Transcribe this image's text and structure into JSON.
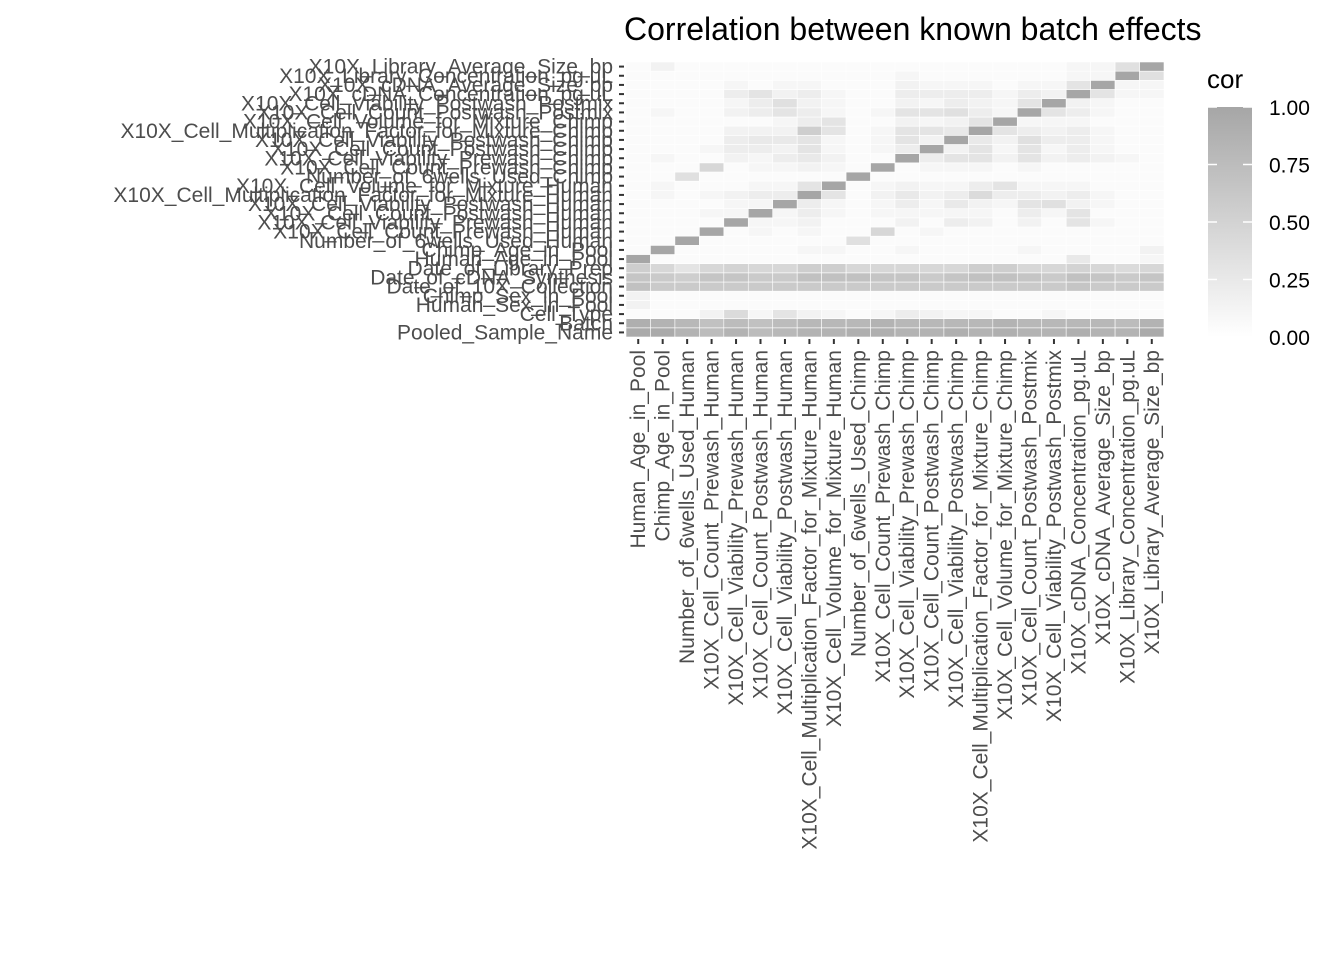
{
  "chart_data": {
    "type": "heatmap",
    "title": "Correlation between known batch effects",
    "y_categories": [
      "Pooled_Sample_Name",
      "Batch",
      "Cell_Type",
      "Human_Sex_in_Pool",
      "Chimp_Sex_in_Pool",
      "Date_of_10X_Collection",
      "Date_of_cDNA_Synthesis",
      "Date_of_Library_Prep",
      "Human_Age_in_Pool",
      "Chimp_Age_in_Pool",
      "Number_of_6wells_Used_Human",
      "X10X_Cell_Count_Prewash_Human",
      "X10X_Cell_Viability_Prewash_Human",
      "X10X_Cell_Count_Postwash_Human",
      "X10X_Cell_Viability_Postwash_Human",
      "X10X_Cell_Multiplication_Factor_for_Mixture_Human",
      "X10X_Cell_Volume_for_Mixture_Human",
      "Number_of_6wells_Used_Chimp",
      "X10X_Cell_Count_Prewash_Chimp",
      "X10X_Cell_Viability_Prewash_Chimp",
      "X10X_Cell_Count_Postwash_Chimp",
      "X10X_Cell_Viability_Postwash_Chimp",
      "X10X_Cell_Multiplication_Factor_for_Mixture_Chimp",
      "X10X_Cell_Volume_for_Mixture_Chimp",
      "X10X_Cell_Count_Postwash_Postmix",
      "X10X_Cell_Viability_Postwash_Postmix",
      "X10X_cDNA_Concentration_pg.uL",
      "X10X_cDNA_Average_Size_bp",
      "X10X_Library_Concentration_pg.uL",
      "X10X_Library_Average_Size_bp"
    ],
    "x_categories": [
      "Human_Age_in_Pool",
      "Chimp_Age_in_Pool",
      "Number_of_6wells_Used_Human",
      "X10X_Cell_Count_Prewash_Human",
      "X10X_Cell_Viability_Prewash_Human",
      "X10X_Cell_Count_Postwash_Human",
      "X10X_Cell_Viability_Postwash_Human",
      "X10X_Cell_Multiplication_Factor_for_Mixture_Human",
      "X10X_Cell_Volume_for_Mixture_Human",
      "Number_of_6wells_Used_Chimp",
      "X10X_Cell_Count_Prewash_Chimp",
      "X10X_Cell_Viability_Prewash_Chimp",
      "X10X_Cell_Count_Postwash_Chimp",
      "X10X_Cell_Viability_Postwash_Chimp",
      "X10X_Cell_Multiplication_Factor_for_Mixture_Chimp",
      "X10X_Cell_Volume_for_Mixture_Chimp",
      "X10X_Cell_Count_Postwash_Postmix",
      "X10X_Cell_Viability_Postwash_Postmix",
      "X10X_cDNA_Concentration_pg.uL",
      "X10X_cDNA_Average_Size_bp",
      "X10X_Library_Concentration_pg.uL",
      "X10X_Library_Average_Size_bp"
    ],
    "values": [
      [
        0.95,
        0.95,
        0.85,
        0.75,
        0.85,
        0.75,
        0.8,
        0.85,
        0.85,
        0.9,
        0.9,
        0.85,
        0.85,
        0.9,
        0.85,
        0.9,
        0.85,
        0.85,
        0.9,
        0.85,
        0.85,
        0.95
      ],
      [
        0.9,
        0.85,
        0.8,
        0.7,
        0.75,
        0.7,
        0.75,
        0.8,
        0.8,
        0.8,
        0.85,
        0.8,
        0.8,
        0.8,
        0.8,
        0.85,
        0.8,
        0.8,
        0.8,
        0.8,
        0.75,
        0.85
      ],
      [
        0.05,
        0.05,
        0.05,
        0.15,
        0.4,
        0.1,
        0.3,
        0.15,
        0.1,
        0.05,
        0.1,
        0.2,
        0.15,
        0.1,
        0.1,
        0.05,
        0.05,
        0.1,
        0.05,
        0.05,
        0.05,
        0.05
      ],
      [
        0.15,
        0.05,
        0.05,
        0.05,
        0.05,
        0.05,
        0.05,
        0.05,
        0.05,
        0.05,
        0.05,
        0.05,
        0.05,
        0.05,
        0.05,
        0.05,
        0.05,
        0.05,
        0.05,
        0.05,
        0.05,
        0.05
      ],
      [
        0.15,
        0.05,
        0.05,
        0.05,
        0.05,
        0.05,
        0.05,
        0.05,
        0.05,
        0.05,
        0.05,
        0.05,
        0.05,
        0.05,
        0.05,
        0.05,
        0.05,
        0.05,
        0.05,
        0.05,
        0.05,
        0.05
      ],
      [
        0.7,
        0.6,
        0.6,
        0.6,
        0.6,
        0.6,
        0.6,
        0.6,
        0.6,
        0.6,
        0.6,
        0.6,
        0.6,
        0.6,
        0.6,
        0.6,
        0.6,
        0.6,
        0.65,
        0.6,
        0.6,
        0.6
      ],
      [
        0.65,
        0.6,
        0.55,
        0.65,
        0.65,
        0.6,
        0.6,
        0.7,
        0.7,
        0.7,
        0.65,
        0.65,
        0.6,
        0.65,
        0.7,
        0.7,
        0.65,
        0.6,
        0.7,
        0.65,
        0.6,
        0.65
      ],
      [
        0.55,
        0.45,
        0.3,
        0.45,
        0.5,
        0.45,
        0.45,
        0.55,
        0.55,
        0.45,
        0.45,
        0.45,
        0.45,
        0.45,
        0.55,
        0.55,
        0.45,
        0.45,
        0.5,
        0.45,
        0.4,
        0.45
      ],
      [
        1.0,
        0.05,
        0.05,
        0.05,
        0.05,
        0.05,
        0.05,
        0.05,
        0.05,
        0.05,
        0.05,
        0.05,
        0.05,
        0.05,
        0.05,
        0.05,
        0.05,
        0.05,
        0.25,
        0.05,
        0.05,
        0.1
      ],
      [
        0.05,
        1.0,
        0.05,
        0.05,
        0.05,
        0.05,
        0.05,
        0.1,
        0.1,
        0.05,
        0.05,
        0.1,
        0.05,
        0.05,
        0.05,
        0.05,
        0.1,
        0.05,
        0.05,
        0.05,
        0.05,
        0.15
      ],
      [
        0.05,
        0.05,
        1.0,
        0.05,
        0.05,
        0.05,
        0.05,
        0.05,
        0.05,
        0.35,
        0.05,
        0.05,
        0.05,
        0.05,
        0.05,
        0.05,
        0.05,
        0.05,
        0.05,
        0.05,
        0.05,
        0.05
      ],
      [
        0.05,
        0.05,
        0.05,
        1.0,
        0.05,
        0.1,
        0.05,
        0.1,
        0.05,
        0.05,
        0.45,
        0.05,
        0.1,
        0.05,
        0.05,
        0.05,
        0.05,
        0.05,
        0.05,
        0.05,
        0.05,
        0.05
      ],
      [
        0.05,
        0.05,
        0.05,
        0.05,
        1.0,
        0.1,
        0.1,
        0.15,
        0.05,
        0.05,
        0.05,
        0.15,
        0.05,
        0.2,
        0.15,
        0.05,
        0.15,
        0.05,
        0.3,
        0.1,
        0.05,
        0.05
      ],
      [
        0.05,
        0.05,
        0.05,
        0.1,
        0.1,
        1.0,
        0.1,
        0.2,
        0.1,
        0.05,
        0.1,
        0.1,
        0.1,
        0.1,
        0.1,
        0.05,
        0.2,
        0.1,
        0.3,
        0.05,
        0.05,
        0.05
      ],
      [
        0.05,
        0.05,
        0.05,
        0.05,
        0.1,
        0.1,
        1.0,
        0.2,
        0.1,
        0.05,
        0.1,
        0.2,
        0.1,
        0.25,
        0.15,
        0.1,
        0.3,
        0.35,
        0.15,
        0.1,
        0.05,
        0.05
      ],
      [
        0.05,
        0.1,
        0.05,
        0.1,
        0.15,
        0.2,
        0.2,
        1.0,
        0.3,
        0.05,
        0.15,
        0.25,
        0.15,
        0.2,
        0.4,
        0.2,
        0.2,
        0.15,
        0.2,
        0.1,
        0.05,
        0.05
      ],
      [
        0.05,
        0.1,
        0.05,
        0.05,
        0.05,
        0.1,
        0.1,
        0.3,
        1.0,
        0.05,
        0.1,
        0.15,
        0.1,
        0.1,
        0.2,
        0.3,
        0.1,
        0.1,
        0.1,
        0.05,
        0.05,
        0.05
      ],
      [
        0.05,
        0.05,
        0.35,
        0.05,
        0.05,
        0.05,
        0.05,
        0.05,
        0.05,
        1.0,
        0.05,
        0.05,
        0.05,
        0.05,
        0.05,
        0.05,
        0.05,
        0.05,
        0.05,
        0.05,
        0.05,
        0.05
      ],
      [
        0.05,
        0.05,
        0.05,
        0.45,
        0.05,
        0.1,
        0.1,
        0.15,
        0.1,
        0.05,
        1.0,
        0.05,
        0.1,
        0.1,
        0.1,
        0.05,
        0.1,
        0.05,
        0.05,
        0.05,
        0.05,
        0.05
      ],
      [
        0.05,
        0.1,
        0.05,
        0.05,
        0.15,
        0.1,
        0.2,
        0.25,
        0.15,
        0.05,
        0.05,
        1.0,
        0.2,
        0.3,
        0.3,
        0.15,
        0.3,
        0.15,
        0.2,
        0.15,
        0.1,
        0.05
      ],
      [
        0.05,
        0.05,
        0.05,
        0.1,
        0.2,
        0.2,
        0.15,
        0.3,
        0.1,
        0.05,
        0.1,
        0.2,
        1.0,
        0.15,
        0.3,
        0.1,
        0.3,
        0.1,
        0.2,
        0.1,
        0.05,
        0.05
      ],
      [
        0.05,
        0.05,
        0.05,
        0.05,
        0.2,
        0.25,
        0.25,
        0.3,
        0.1,
        0.05,
        0.1,
        0.3,
        0.15,
        1.0,
        0.25,
        0.15,
        0.35,
        0.2,
        0.2,
        0.1,
        0.05,
        0.05
      ],
      [
        0.05,
        0.05,
        0.05,
        0.05,
        0.15,
        0.15,
        0.15,
        0.55,
        0.3,
        0.05,
        0.1,
        0.3,
        0.3,
        0.25,
        1.0,
        0.3,
        0.2,
        0.15,
        0.2,
        0.1,
        0.05,
        0.05
      ],
      [
        0.05,
        0.05,
        0.05,
        0.05,
        0.05,
        0.05,
        0.1,
        0.2,
        0.3,
        0.05,
        0.05,
        0.15,
        0.1,
        0.15,
        0.3,
        1.0,
        0.1,
        0.1,
        0.1,
        0.05,
        0.05,
        0.05
      ],
      [
        0.05,
        0.1,
        0.05,
        0.05,
        0.15,
        0.2,
        0.3,
        0.2,
        0.1,
        0.05,
        0.1,
        0.3,
        0.3,
        0.35,
        0.2,
        0.1,
        1.0,
        0.3,
        0.2,
        0.1,
        0.05,
        0.05
      ],
      [
        0.05,
        0.05,
        0.05,
        0.05,
        0.1,
        0.2,
        0.35,
        0.15,
        0.1,
        0.05,
        0.05,
        0.15,
        0.1,
        0.2,
        0.15,
        0.1,
        0.3,
        1.0,
        0.15,
        0.1,
        0.05,
        0.05
      ],
      [
        0.05,
        0.05,
        0.05,
        0.05,
        0.2,
        0.3,
        0.15,
        0.2,
        0.1,
        0.05,
        0.05,
        0.2,
        0.2,
        0.2,
        0.2,
        0.1,
        0.2,
        0.15,
        1.0,
        0.3,
        0.1,
        0.1
      ],
      [
        0.05,
        0.05,
        0.05,
        0.05,
        0.1,
        0.05,
        0.1,
        0.1,
        0.05,
        0.05,
        0.05,
        0.15,
        0.1,
        0.1,
        0.1,
        0.05,
        0.1,
        0.1,
        0.3,
        1.0,
        0.1,
        0.1
      ],
      [
        0.05,
        0.05,
        0.05,
        0.05,
        0.05,
        0.05,
        0.05,
        0.05,
        0.05,
        0.05,
        0.05,
        0.1,
        0.05,
        0.05,
        0.05,
        0.05,
        0.05,
        0.05,
        0.1,
        0.1,
        1.0,
        0.35
      ],
      [
        0.05,
        0.15,
        0.05,
        0.05,
        0.05,
        0.05,
        0.05,
        0.05,
        0.05,
        0.05,
        0.05,
        0.05,
        0.05,
        0.05,
        0.05,
        0.05,
        0.05,
        0.05,
        0.1,
        0.1,
        0.35,
        1.0
      ]
    ],
    "color_range": [
      0,
      1
    ],
    "low_color": "#ffffff",
    "high_color": "#a6a6a6",
    "legend": {
      "title": "cor",
      "ticks": [
        "0.00",
        "0.25",
        "0.50",
        "0.75",
        "1.00"
      ],
      "placement": "right"
    }
  }
}
